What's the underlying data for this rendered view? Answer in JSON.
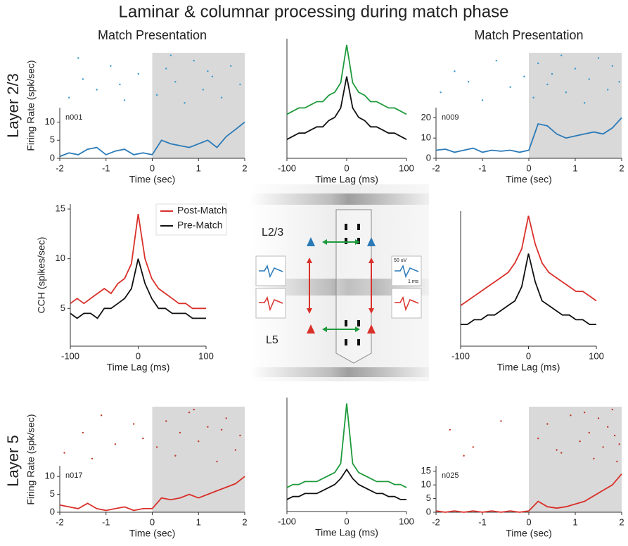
{
  "figure": {
    "title": "Laminar & columnar processing during match phase",
    "row_labels": [
      "Layer 2/3",
      "Layer 5"
    ]
  },
  "diagram": {
    "layer_labels": [
      "L2/3",
      "L5"
    ],
    "scale_labels": [
      "50 uV",
      "1 ms"
    ]
  },
  "chart_data": [
    {
      "type": "line",
      "title": "Match Presentation",
      "annotation": "n001",
      "xlabel": "Time (sec)",
      "ylabel": "Firing Rate (spk/sec)",
      "x": [
        -2,
        -1.8,
        -1.6,
        -1.4,
        -1.2,
        -1,
        -0.8,
        -0.6,
        -0.4,
        -0.2,
        0,
        0.2,
        0.4,
        0.6,
        0.8,
        1,
        1.2,
        1.4,
        1.6,
        1.8,
        2
      ],
      "series": [
        {
          "color": "#2a7ab8",
          "values": [
            0.5,
            1.5,
            1,
            2.5,
            3,
            1,
            2,
            2.5,
            1,
            1.5,
            1,
            5,
            4,
            3.5,
            3,
            4,
            5,
            3,
            6,
            8,
            10
          ]
        }
      ],
      "xlim": [
        -2,
        2
      ],
      "ylim": [
        0,
        14
      ],
      "xticks": [
        -2,
        -1,
        0,
        1,
        2
      ],
      "yticks": [
        0,
        5,
        10
      ],
      "shaded_from": 0,
      "shade_color": "#d9d9d9",
      "raster": {
        "color": "#3a9ad0",
        "ylim": [
          0,
          20
        ],
        "times": [
          -1.8,
          -1.5,
          -1.2,
          -0.9,
          -0.6,
          -0.3,
          -1.6,
          -0.7,
          0.1,
          0.3,
          0.5,
          0.7,
          0.9,
          1.1,
          1.3,
          1.5,
          1.7,
          1.9,
          0.4,
          1.2
        ],
        "trials": [
          3,
          10,
          6,
          15,
          2,
          12,
          18,
          8,
          4,
          14,
          9,
          1,
          17,
          6,
          11,
          3,
          15,
          8,
          19,
          13
        ]
      }
    },
    {
      "type": "line",
      "xlabel": "Time Lag (ms)",
      "x": [
        -100,
        -90,
        -80,
        -70,
        -60,
        -50,
        -40,
        -30,
        -20,
        -10,
        0,
        10,
        20,
        30,
        40,
        50,
        60,
        70,
        80,
        90,
        100
      ],
      "series": [
        {
          "color": "#1e9a3c",
          "values": [
            9,
            9.5,
            10,
            10,
            10.5,
            11,
            11,
            12,
            12.5,
            14,
            20,
            14,
            12.5,
            12,
            11,
            11,
            10.5,
            10,
            10,
            9.5,
            9
          ]
        },
        {
          "color": "#111111",
          "values": [
            5,
            5.5,
            6,
            6,
            6.5,
            7,
            7,
            8,
            8.5,
            10,
            15,
            10,
            8.5,
            8,
            7,
            7,
            6.5,
            6,
            6,
            5.5,
            5
          ]
        }
      ],
      "xlim": [
        -100,
        100
      ],
      "ylim": [
        2,
        21
      ],
      "xticks": [
        -100,
        0,
        100
      ]
    },
    {
      "type": "line",
      "title": "Match Presentation",
      "annotation": "n009",
      "xlabel": "Time (sec)",
      "x": [
        -2,
        -1.8,
        -1.6,
        -1.4,
        -1.2,
        -1,
        -0.8,
        -0.6,
        -0.4,
        -0.2,
        0,
        0.2,
        0.4,
        0.6,
        0.8,
        1,
        1.2,
        1.4,
        1.6,
        1.8,
        2
      ],
      "series": [
        {
          "color": "#2a7ab8",
          "values": [
            4,
            4.5,
            3,
            4,
            5,
            3,
            4,
            3.5,
            4,
            3,
            4,
            17,
            16,
            12,
            10,
            11,
            12,
            13,
            12,
            15,
            20
          ]
        }
      ],
      "xlim": [
        -2,
        2
      ],
      "ylim": [
        0,
        25
      ],
      "xticks": [
        -2,
        -1,
        0,
        1,
        2
      ],
      "yticks": [
        0,
        10,
        20
      ],
      "shaded_from": 0,
      "shade_color": "#d9d9d9",
      "raster": {
        "color": "#3a9ad0",
        "ylim": [
          0,
          20
        ],
        "times": [
          -1.9,
          -1.6,
          -1.3,
          -1,
          -0.7,
          -0.4,
          -0.1,
          0.1,
          0.2,
          0.4,
          0.5,
          0.7,
          0.8,
          1,
          1.2,
          1.3,
          1.5,
          1.7,
          1.8,
          1.95
        ],
        "trials": [
          5,
          13,
          9,
          2,
          17,
          7,
          11,
          3,
          16,
          8,
          12,
          19,
          5,
          14,
          1,
          10,
          18,
          6,
          15,
          9
        ]
      }
    },
    {
      "type": "line",
      "xlabel": "Time Lag (ms)",
      "ylabel": "CCH (spikes/sec)",
      "x": [
        -100,
        -90,
        -80,
        -70,
        -60,
        -50,
        -40,
        -30,
        -20,
        -10,
        0,
        10,
        20,
        30,
        40,
        50,
        60,
        70,
        80,
        90,
        100
      ],
      "series": [
        {
          "name": "Post-Match",
          "color": "#d9302a",
          "values": [
            5.5,
            6,
            5.5,
            6,
            6.5,
            7,
            6.5,
            7.5,
            8,
            9.5,
            14.5,
            10,
            8,
            7,
            6.5,
            6,
            5.5,
            5.5,
            5,
            5,
            5
          ]
        },
        {
          "name": "Pre-Match",
          "color": "#111111",
          "values": [
            4.5,
            4,
            4.5,
            4.5,
            4,
            5,
            5,
            5.5,
            6,
            7,
            10,
            7.5,
            6,
            5,
            5,
            4.5,
            4.5,
            4.5,
            4,
            4,
            4
          ]
        }
      ],
      "xlim": [
        -100,
        100
      ],
      "ylim": [
        1.2,
        15.5
      ],
      "xticks": [
        -100,
        0,
        100
      ],
      "yticks": [
        5,
        10,
        15
      ],
      "legend": "top-right"
    },
    {
      "type": "line",
      "xlabel": "Time Lag (ms)",
      "x": [
        -100,
        -90,
        -80,
        -70,
        -60,
        -50,
        -40,
        -30,
        -20,
        -10,
        0,
        10,
        20,
        30,
        40,
        50,
        60,
        70,
        80,
        90,
        100
      ],
      "series": [
        {
          "color": "#d9302a",
          "values": [
            5.5,
            6,
            6.5,
            7,
            7.5,
            8,
            8.5,
            9,
            10,
            11.5,
            15,
            12,
            10,
            9,
            8.5,
            8,
            7.5,
            7,
            7,
            6.5,
            6
          ]
        },
        {
          "color": "#111111",
          "values": [
            3.5,
            3.5,
            4,
            4,
            4.5,
            4.5,
            5,
            5.5,
            6,
            7.5,
            11,
            8,
            6,
            5.5,
            5,
            4.5,
            4.5,
            4,
            4,
            3.5,
            3.5
          ]
        }
      ],
      "xlim": [
        -100,
        100
      ],
      "ylim": [
        1.2,
        15.5
      ],
      "xticks": [
        -100,
        0,
        100
      ]
    },
    {
      "type": "line",
      "annotation": "n017",
      "xlabel": "Time (sec)",
      "ylabel": "Firing Rate (spk/sec)",
      "x": [
        -2,
        -1.8,
        -1.6,
        -1.4,
        -1.2,
        -1,
        -0.8,
        -0.6,
        -0.4,
        -0.2,
        0,
        0.2,
        0.4,
        0.6,
        0.8,
        1,
        1.2,
        1.4,
        1.6,
        1.8,
        2
      ],
      "series": [
        {
          "color": "#d9302a",
          "values": [
            2,
            1.5,
            1,
            2.5,
            1,
            0.5,
            1,
            1.5,
            0.5,
            1,
            1,
            4,
            3.5,
            4,
            5,
            4,
            5,
            6,
            7,
            8,
            10
          ]
        }
      ],
      "xlim": [
        -2,
        2
      ],
      "ylim": [
        0,
        13
      ],
      "xticks": [
        -2,
        -1,
        0,
        1,
        2
      ],
      "yticks": [
        0,
        5,
        10
      ],
      "shaded_from": 0,
      "shade_color": "#d9d9d9",
      "raster": {
        "color": "#c0392b",
        "ylim": [
          0,
          20
        ],
        "times": [
          -1.9,
          -1.5,
          -1.1,
          -0.8,
          -0.4,
          -1.3,
          -0.2,
          0.1,
          0.3,
          0.5,
          0.6,
          0.8,
          1,
          1.2,
          1.4,
          1.6,
          1.8,
          1.9,
          0.9,
          1.5
        ],
        "trials": [
          4,
          11,
          17,
          7,
          14,
          2,
          9,
          6,
          15,
          3,
          11,
          18,
          8,
          13,
          1,
          16,
          5,
          10,
          19,
          12
        ]
      }
    },
    {
      "type": "line",
      "xlabel": "Time Lag (ms)",
      "x": [
        -100,
        -90,
        -80,
        -70,
        -60,
        -50,
        -40,
        -30,
        -20,
        -10,
        0,
        10,
        20,
        30,
        40,
        50,
        60,
        70,
        80,
        90,
        100
      ],
      "series": [
        {
          "color": "#1e9a3c",
          "values": [
            6,
            6.5,
            6.5,
            7,
            7,
            7,
            7.5,
            8,
            8.5,
            10,
            20,
            10,
            8.5,
            8,
            7.5,
            7,
            7,
            7,
            6.5,
            6.5,
            6
          ]
        },
        {
          "color": "#111111",
          "values": [
            4,
            4.5,
            4.5,
            5,
            5,
            5,
            5.5,
            6,
            6.5,
            7.5,
            9,
            7.5,
            6.5,
            6,
            5.5,
            5,
            5,
            4.5,
            4.5,
            4,
            4
          ]
        }
      ],
      "xlim": [
        -100,
        100
      ],
      "ylim": [
        2,
        21
      ],
      "xticks": [
        -100,
        0,
        100
      ]
    },
    {
      "type": "line",
      "annotation": "n025",
      "xlabel": "Time (sec)",
      "x": [
        -2,
        -1.8,
        -1.6,
        -1.4,
        -1.2,
        -1,
        -0.8,
        -0.6,
        -0.4,
        -0.2,
        0,
        0.2,
        0.4,
        0.6,
        0.8,
        1,
        1.2,
        1.4,
        1.6,
        1.8,
        2
      ],
      "series": [
        {
          "color": "#d9302a",
          "values": [
            0.5,
            0,
            0.5,
            0,
            0.5,
            0,
            0.5,
            0,
            0.5,
            0,
            0.5,
            4,
            2,
            1.5,
            2,
            3,
            4,
            6,
            8,
            10,
            14
          ]
        }
      ],
      "xlim": [
        -2,
        2
      ],
      "ylim": [
        0,
        17
      ],
      "xticks": [
        -2,
        -1,
        0,
        1,
        2
      ],
      "yticks": [
        0,
        5,
        10,
        15
      ],
      "shaded_from": 0,
      "shade_color": "#d9d9d9",
      "raster": {
        "color": "#c0392b",
        "ylim": [
          0,
          20
        ],
        "times": [
          -1.7,
          -1.2,
          -0.6,
          -1.4,
          0.2,
          0.4,
          0.7,
          0.9,
          1.1,
          1.3,
          1.4,
          1.5,
          1.6,
          1.7,
          1.8,
          1.85,
          1.9,
          1.95,
          1.2,
          0.6
        ],
        "trials": [
          12,
          6,
          15,
          3,
          9,
          14,
          4,
          17,
          8,
          11,
          2,
          16,
          6,
          13,
          19,
          10,
          1,
          7,
          18,
          5
        ]
      }
    }
  ]
}
